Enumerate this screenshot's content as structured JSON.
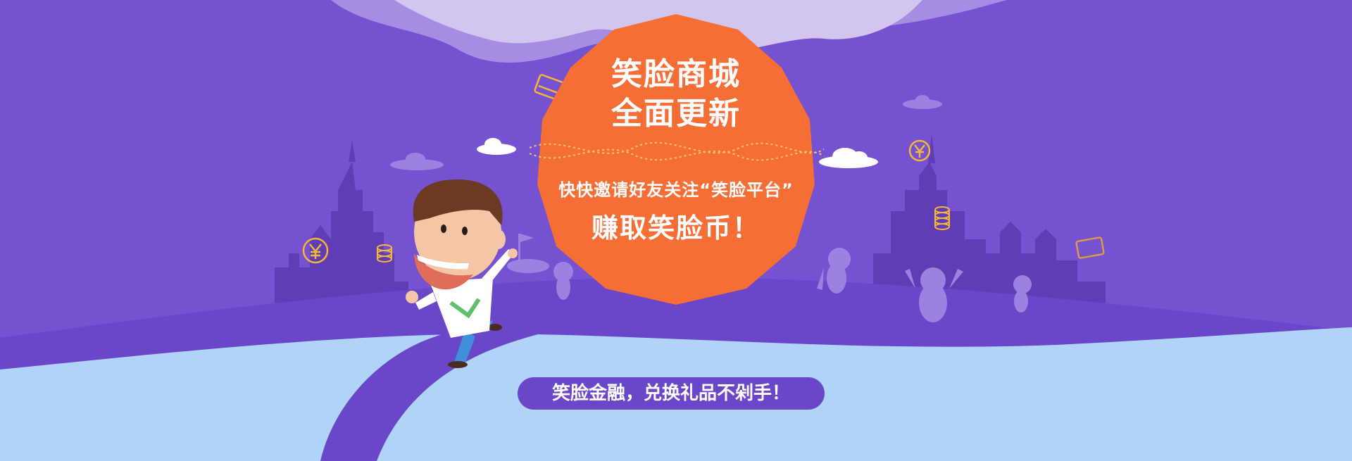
{
  "colors": {
    "background": "#7452d0",
    "cloud_top": "#d2c6ee",
    "cloud_mid": "#a48ee3",
    "castle": "#5f3db5",
    "ground_light": "#b0d4f7",
    "ground_path": "#6a46c8",
    "badge": "#f46e36",
    "pill": "#6a46c8",
    "coin": "#f5b73a"
  },
  "headline": {
    "line1": "笑脸商城",
    "line2": "全面更新"
  },
  "subtitle": "快快邀请好友关注“笑脸平台”",
  "cta": "赚取笑脸币！",
  "tagline": "笑脸金融，兑换礼品不剁手！",
  "icons": [
    "cloud-icon",
    "yen-coin-icon",
    "coin-stack-icon",
    "credit-card-icon",
    "flag-icon"
  ]
}
